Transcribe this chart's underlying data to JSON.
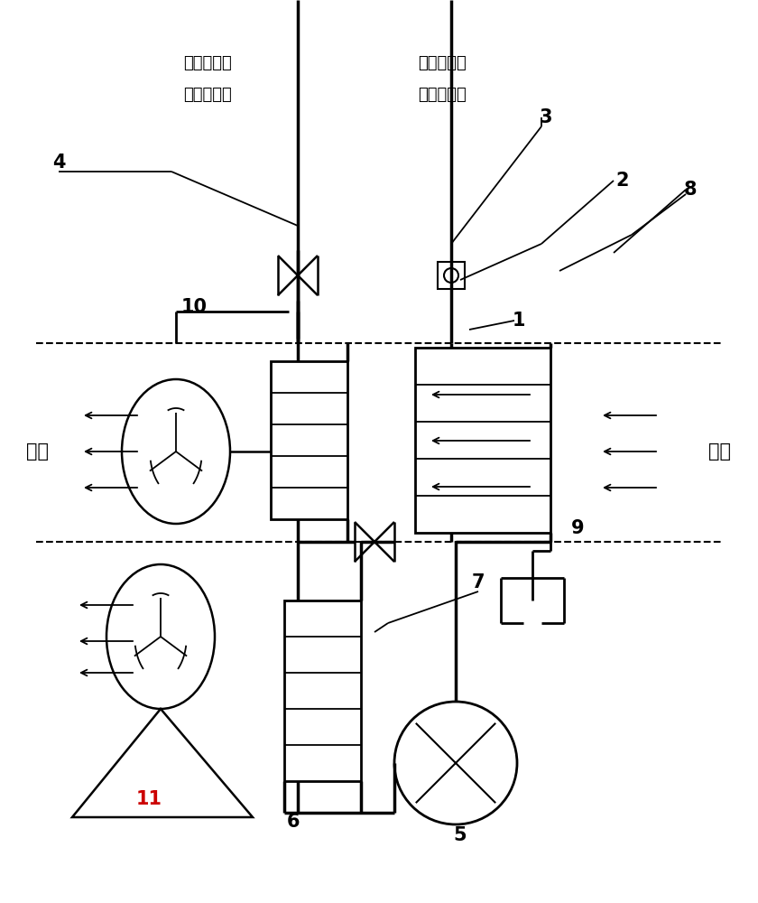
{
  "bg_color": "#ffffff",
  "lc": "#000000",
  "red": "#cc0000",
  "black": "#000000",
  "fig_w": 8.4,
  "fig_h": 10.0,
  "xlim": [
    0,
    840
  ],
  "ylim": [
    0,
    1000
  ],
  "dash_y1": 620,
  "dash_y2": 400,
  "labels_cn": {
    "top_left1": "接雷达液冷",
    "top_left2": "系统高压侧",
    "top_right1": "接雷达液冷",
    "top_right2": "系统低压侧",
    "songfeng": "送风",
    "huifeng": "回风"
  }
}
